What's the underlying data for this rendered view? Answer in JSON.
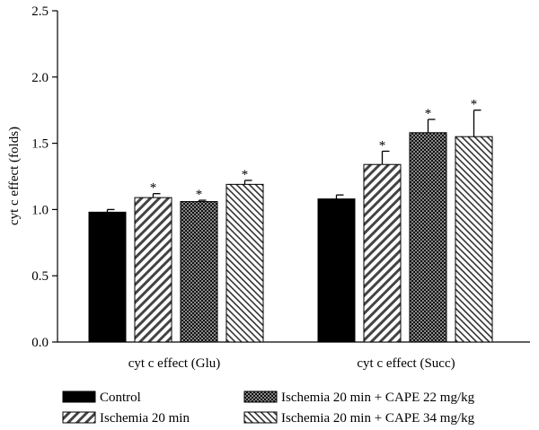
{
  "chart_data": {
    "type": "bar",
    "ylabel": "cyt c effect (folds)",
    "ylim": [
      0,
      2.5
    ],
    "yticks": [
      "0.0",
      "0.5",
      "1.0",
      "1.5",
      "2.0",
      "2.5"
    ],
    "categories": [
      "cyt c effect (Glu)",
      "cyt c effect (Succ)"
    ],
    "grid": false,
    "legend_position": "bottom",
    "series": [
      {
        "name": "Control",
        "values": [
          0.98,
          1.08
        ],
        "errors": [
          0.02,
          0.03
        ],
        "significant": [
          "",
          ""
        ],
        "pattern": "solid"
      },
      {
        "name": "Ischemia 20 min",
        "values": [
          1.09,
          1.34
        ],
        "errors": [
          0.03,
          0.1
        ],
        "significant": [
          "*",
          "*"
        ],
        "pattern": "diagonal-coarse"
      },
      {
        "name": "Ischemia 20 min + CAPE 22 mg/kg",
        "values": [
          1.06,
          1.58
        ],
        "errors": [
          0.01,
          0.1
        ],
        "significant": [
          "*",
          "*"
        ],
        "pattern": "crosshatch"
      },
      {
        "name": "Ischemia 20 min + CAPE 34 mg/kg",
        "values": [
          1.19,
          1.55
        ],
        "errors": [
          0.03,
          0.2
        ],
        "significant": [
          "*",
          "*"
        ],
        "pattern": "diagonal-fine"
      }
    ]
  }
}
